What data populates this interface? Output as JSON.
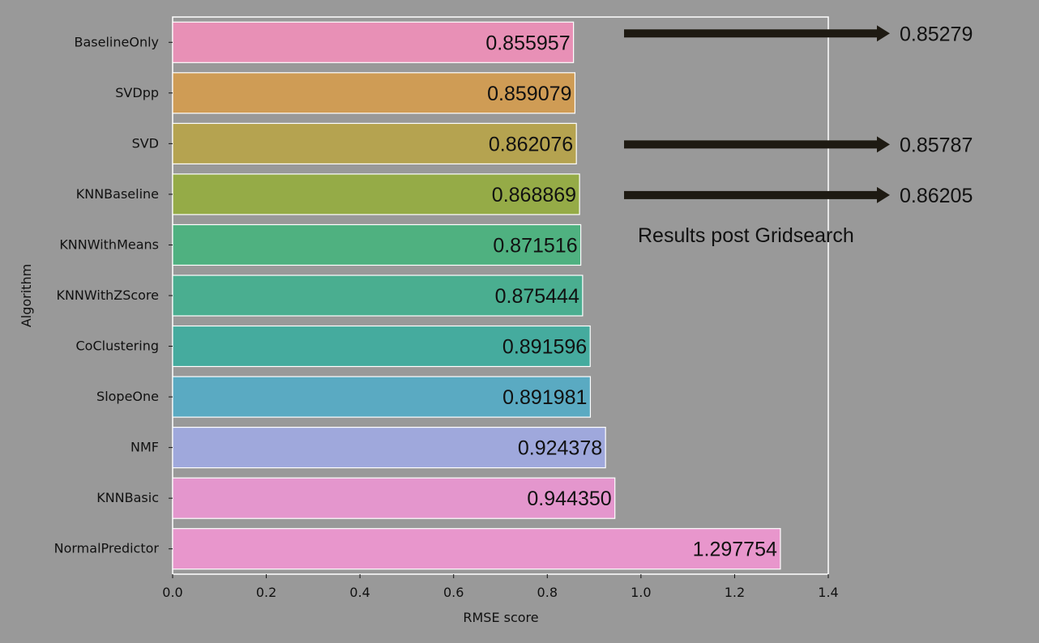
{
  "chart_data": {
    "type": "bar",
    "orientation": "horizontal",
    "xlabel": "RMSE score",
    "ylabel": "Algorithm",
    "xlim": [
      0,
      1.4
    ],
    "xticks": [
      "0.0",
      "0.2",
      "0.4",
      "0.6",
      "0.8",
      "1.0",
      "1.2",
      "1.4"
    ],
    "grid": false,
    "categories": [
      "BaselineOnly",
      "SVDpp",
      "SVD",
      "KNNBaseline",
      "KNNWithMeans",
      "KNNWithZScore",
      "CoClustering",
      "SlopeOne",
      "NMF",
      "KNNBasic",
      "NormalPredictor"
    ],
    "values": [
      0.855957,
      0.859079,
      0.862076,
      0.868869,
      0.871516,
      0.875444,
      0.891596,
      0.891981,
      0.924378,
      0.94435,
      1.297754
    ],
    "value_labels": [
      "0.855957",
      "0.859079",
      "0.862076",
      "0.868869",
      "0.871516",
      "0.875444",
      "0.891596",
      "0.891981",
      "0.924378",
      "0.944350",
      "1.297754"
    ],
    "colors": [
      "#e890b6",
      "#cf9c55",
      "#b5a350",
      "#95ab47",
      "#4fb180",
      "#4aae90",
      "#45ab9e",
      "#5aaac2",
      "#9fa8dc",
      "#e496cd",
      "#e896cc"
    ],
    "annotations": {
      "title": "Results post Gridsearch",
      "items": [
        {
          "category": "BaselineOnly",
          "value": "0.85279"
        },
        {
          "category": "SVD",
          "value": "0.85787"
        },
        {
          "category": "KNNBaseline",
          "value": "0.86205"
        }
      ]
    }
  },
  "colors": {
    "background": "#999999",
    "axes_frame": "#ffffff",
    "text": "#111111",
    "arrow": "#1e1a12"
  }
}
